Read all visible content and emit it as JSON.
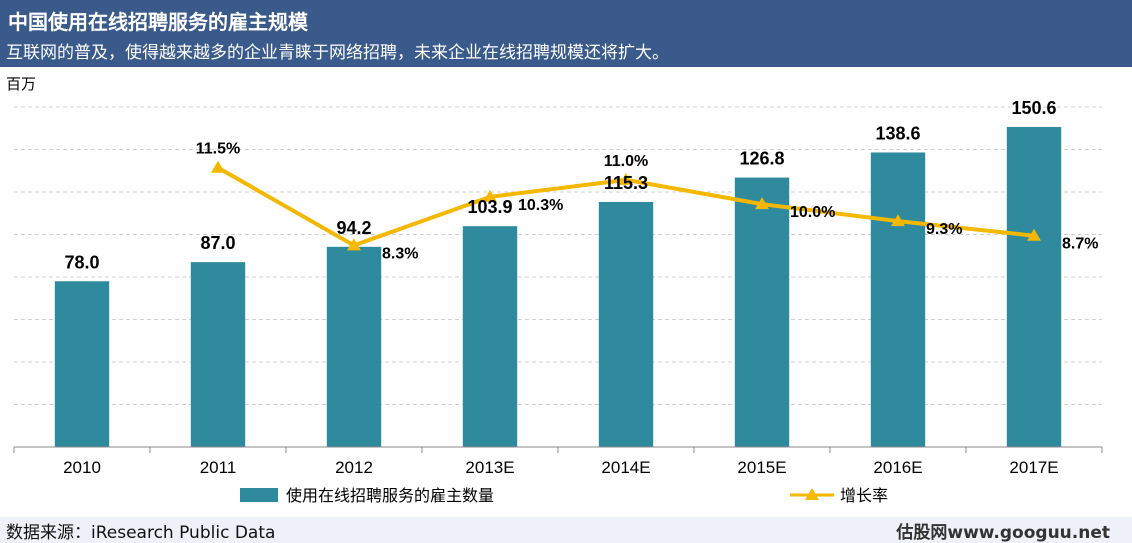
{
  "header": {
    "title": "中国使用在线招聘服务的雇主规模",
    "subtitle": "互联网的普及，使得越来越多的企业青睐于网络招聘，未来企业在线招聘规模还将扩大。"
  },
  "colors": {
    "bar": "#2e8a9c",
    "line": "#f5b800",
    "header_bg": "#3a5a8c",
    "grid": "#d0d0d0"
  },
  "chart_data": {
    "type": "bar",
    "unit_label": "百万",
    "categories": [
      "2010",
      "2011",
      "2012",
      "2013E",
      "2014E",
      "2015E",
      "2016E",
      "2017E"
    ],
    "series": [
      {
        "name": "使用在线招聘服务的雇主数量",
        "type": "bar",
        "values": [
          78.0,
          87.0,
          94.2,
          103.9,
          115.3,
          126.8,
          138.6,
          150.6
        ],
        "labels": [
          "78.0",
          "87.0",
          "94.2",
          "103.9",
          "115.3",
          "126.8",
          "138.6",
          "150.6"
        ]
      },
      {
        "name": "增长率",
        "type": "line",
        "x": [
          "2011",
          "2012",
          "2013E",
          "2014E",
          "2015E",
          "2016E",
          "2017E"
        ],
        "values": [
          11.5,
          8.3,
          10.3,
          11.0,
          10.0,
          9.3,
          8.7
        ],
        "labels": [
          "11.5%",
          "8.3%",
          "10.3%",
          "11.0%",
          "10.0%",
          "9.3%",
          "8.7%"
        ]
      }
    ],
    "ylim": [
      0,
      160
    ],
    "y2lim": [
      0,
      14
    ],
    "grid": true,
    "legend_position": "bottom"
  },
  "footer": {
    "source": "数据来源：iResearch Public Data",
    "watermark": "估股网www.googuu.net"
  }
}
